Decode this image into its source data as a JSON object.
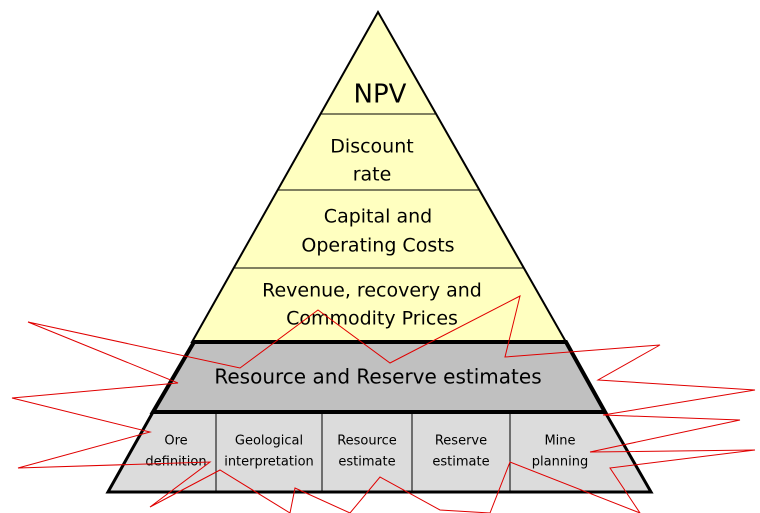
{
  "levels": [
    {
      "lines": [
        "NPV"
      ]
    },
    {
      "lines": [
        "Discount",
        "rate"
      ]
    },
    {
      "lines": [
        "Capital and",
        "Operating Costs"
      ]
    },
    {
      "lines": [
        "Revenue, recovery and",
        "Commodity Prices"
      ]
    }
  ],
  "band": {
    "label": "Resource and Reserve estimates"
  },
  "cells": [
    {
      "lines": [
        "Ore",
        "definition"
      ]
    },
    {
      "lines": [
        "Geological",
        "interpretation"
      ]
    },
    {
      "lines": [
        "Resource",
        "estimate"
      ]
    },
    {
      "lines": [
        "Reserve",
        "estimate"
      ]
    },
    {
      "lines": [
        "Mine",
        "planning"
      ]
    }
  ]
}
